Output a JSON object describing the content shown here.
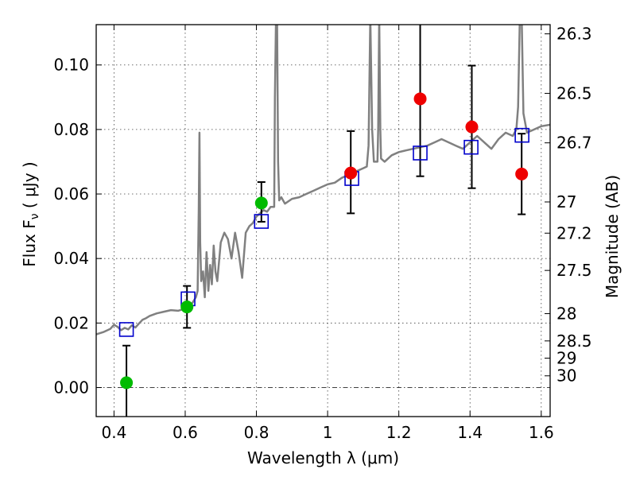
{
  "chart_data": {
    "type": "scatter",
    "xlabel": "Wavelength  λ (μm)",
    "ylabel": "Flux  F",
    "ylabel_sub": "ν",
    "ylabel_unit": "  ( μJy )",
    "y2label": "Magnitude (AB)",
    "xlim": [
      0.35,
      1.625
    ],
    "ylim": [
      -0.009,
      0.1125
    ],
    "x_ticks": [
      {
        "value": 0.4,
        "label": "0.4"
      },
      {
        "value": 0.6,
        "label": "0.6"
      },
      {
        "value": 0.8,
        "label": "0.8"
      },
      {
        "value": 1.0,
        "label": "1"
      },
      {
        "value": 1.2,
        "label": "1.2"
      },
      {
        "value": 1.4,
        "label": "1.4"
      },
      {
        "value": 1.6,
        "label": "1.6"
      }
    ],
    "y_ticks": [
      {
        "value": 0.0,
        "label": "0.00"
      },
      {
        "value": 0.02,
        "label": "0.02"
      },
      {
        "value": 0.04,
        "label": "0.04"
      },
      {
        "value": 0.06,
        "label": "0.06"
      },
      {
        "value": 0.08,
        "label": "0.08"
      },
      {
        "value": 0.1,
        "label": "0.10"
      }
    ],
    "y2_ticks": [
      {
        "mag": 26.3,
        "label": "26.3"
      },
      {
        "mag": 26.5,
        "label": "26.5"
      },
      {
        "mag": 26.7,
        "label": "26.7"
      },
      {
        "mag": 27,
        "label": "27"
      },
      {
        "mag": 27.2,
        "label": "27.2"
      },
      {
        "mag": 27.5,
        "label": "27.5"
      },
      {
        "mag": 28,
        "label": "28"
      },
      {
        "mag": 28.5,
        "label": "28.5"
      },
      {
        "mag": 29,
        "label": "29"
      },
      {
        "mag": 30,
        "label": "30"
      }
    ],
    "grid": true,
    "zero_line": true,
    "colors": {
      "spectrum": "#808080",
      "detection_green": "#00bb00",
      "detection_red": "#ee0000",
      "model_box": "#0000cc",
      "errorbar": "#000000"
    },
    "spectrum": {
      "x": [
        0.35,
        0.37,
        0.39,
        0.4,
        0.41,
        0.42,
        0.43,
        0.44,
        0.45,
        0.46,
        0.47,
        0.48,
        0.49,
        0.5,
        0.52,
        0.54,
        0.56,
        0.58,
        0.6,
        0.61,
        0.62,
        0.63,
        0.635,
        0.638,
        0.64,
        0.642,
        0.645,
        0.65,
        0.655,
        0.66,
        0.665,
        0.67,
        0.675,
        0.68,
        0.685,
        0.69,
        0.7,
        0.71,
        0.72,
        0.73,
        0.74,
        0.75,
        0.76,
        0.77,
        0.78,
        0.79,
        0.8,
        0.81,
        0.82,
        0.83,
        0.84,
        0.85,
        0.852,
        0.855,
        0.858,
        0.861,
        0.864,
        0.87,
        0.88,
        0.9,
        0.92,
        0.94,
        0.96,
        0.98,
        1.0,
        1.02,
        1.04,
        1.06,
        1.08,
        1.1,
        1.11,
        1.115,
        1.12,
        1.125,
        1.13,
        1.14,
        1.142,
        1.145,
        1.148,
        1.15,
        1.16,
        1.18,
        1.2,
        1.22,
        1.24,
        1.26,
        1.28,
        1.3,
        1.32,
        1.34,
        1.36,
        1.38,
        1.4,
        1.42,
        1.44,
        1.46,
        1.48,
        1.5,
        1.52,
        1.53,
        1.535,
        1.54,
        1.545,
        1.55,
        1.56,
        1.58,
        1.6,
        1.625
      ],
      "y": [
        0.0165,
        0.0172,
        0.0182,
        0.0195,
        0.0188,
        0.0178,
        0.0185,
        0.018,
        0.0193,
        0.0186,
        0.0198,
        0.021,
        0.0215,
        0.0222,
        0.023,
        0.0235,
        0.024,
        0.0238,
        0.0245,
        0.025,
        0.0262,
        0.028,
        0.03,
        0.055,
        0.079,
        0.045,
        0.033,
        0.036,
        0.028,
        0.042,
        0.03,
        0.038,
        0.032,
        0.044,
        0.036,
        0.033,
        0.045,
        0.048,
        0.046,
        0.04,
        0.048,
        0.042,
        0.034,
        0.048,
        0.05,
        0.051,
        0.053,
        0.054,
        0.055,
        0.0545,
        0.056,
        0.056,
        0.09,
        0.115,
        0.115,
        0.07,
        0.058,
        0.059,
        0.057,
        0.0585,
        0.059,
        0.06,
        0.061,
        0.062,
        0.063,
        0.0635,
        0.065,
        0.066,
        0.067,
        0.068,
        0.0685,
        0.075,
        0.115,
        0.08,
        0.07,
        0.07,
        0.08,
        0.115,
        0.08,
        0.071,
        0.07,
        0.072,
        0.073,
        0.0735,
        0.074,
        0.0745,
        0.075,
        0.076,
        0.077,
        0.076,
        0.075,
        0.074,
        0.076,
        0.078,
        0.076,
        0.074,
        0.077,
        0.079,
        0.078,
        0.08,
        0.087,
        0.115,
        0.115,
        0.085,
        0.079,
        0.08,
        0.081,
        0.0815
      ]
    },
    "detections": [
      {
        "x": 0.435,
        "y": 0.0015,
        "err_low": 0.014,
        "err_high": 0.0115,
        "color": "green"
      },
      {
        "x": 0.605,
        "y": 0.025,
        "err_low": 0.0065,
        "err_high": 0.0065,
        "color": "green"
      },
      {
        "x": 0.814,
        "y": 0.0572,
        "err_low": 0.0058,
        "err_high": 0.0065,
        "color": "green"
      },
      {
        "x": 1.065,
        "y": 0.0665,
        "err_low": 0.0125,
        "err_high": 0.013,
        "color": "red"
      },
      {
        "x": 1.26,
        "y": 0.0895,
        "err_low": 0.024,
        "err_high": 0.024,
        "color": "red"
      },
      {
        "x": 1.405,
        "y": 0.0808,
        "err_low": 0.019,
        "err_high": 0.019,
        "color": "red"
      },
      {
        "x": 1.545,
        "y": 0.0662,
        "err_low": 0.0125,
        "err_high": 0.0125,
        "color": "red"
      }
    ],
    "model_points": [
      {
        "x": 0.435,
        "y": 0.018
      },
      {
        "x": 0.608,
        "y": 0.0275
      },
      {
        "x": 0.814,
        "y": 0.0515
      },
      {
        "x": 1.068,
        "y": 0.0648
      },
      {
        "x": 1.26,
        "y": 0.0727
      },
      {
        "x": 1.403,
        "y": 0.0745
      },
      {
        "x": 1.546,
        "y": 0.0782
      }
    ]
  }
}
